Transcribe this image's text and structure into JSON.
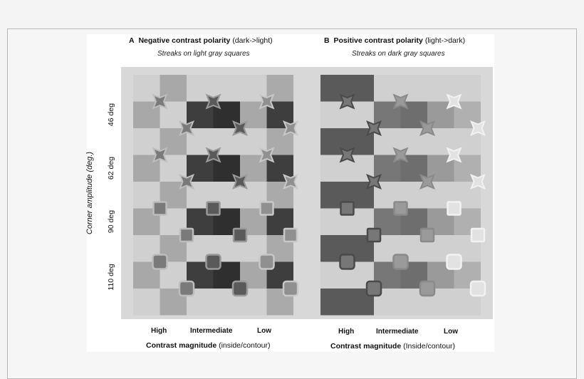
{
  "panel_a": {
    "letter": "A",
    "title_bold": "Negative contrast polarity",
    "title_rest": "(dark->light)",
    "subtitle": "Streaks on light gray squares"
  },
  "panel_b": {
    "letter": "B",
    "title_bold": "Positive contrast polarity",
    "title_rest": "(light->dark)",
    "subtitle": "Streaks on dark gray squares"
  },
  "y_axis_label": "Corner amplitude (deg.)",
  "row_labels": [
    "46 deg",
    "62 deg",
    "90 deg",
    "110 deg"
  ],
  "column_labels": [
    "High",
    "Intermediate",
    "Low"
  ],
  "x_axis": {
    "panel_a_bold": "Contrast magnitude",
    "panel_a_rest": "(inside/contour)",
    "panel_b_bold": "Contrast magnitude",
    "panel_b_rest": "(Inside/contour)"
  },
  "colors": {
    "board_background": "#d8d8d8",
    "light_square": "#d0d0d0",
    "mid_square": "#a8a8a8",
    "dark_square": "#3e3e3e",
    "panel_b_dark": "#5a5a5a"
  }
}
